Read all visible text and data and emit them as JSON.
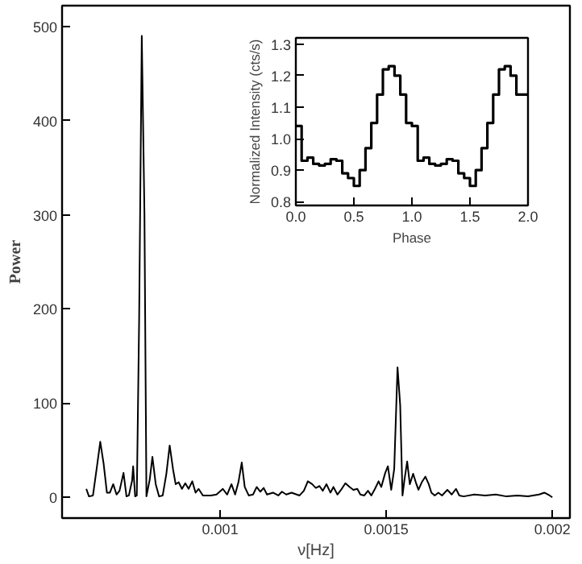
{
  "chart_data": [
    {
      "type": "line",
      "xlabel": "ν[Hz]",
      "ylabel": "Power",
      "x": [
        0.000597,
        0.000605,
        0.000617,
        0.000628,
        0.000639,
        0.000649,
        0.000659,
        0.000668,
        0.000678,
        0.000688,
        0.000697,
        0.000709,
        0.000718,
        0.000725,
        0.000735,
        0.000738,
        0.000744,
        0.000749,
        0.000756,
        0.000764,
        0.000772,
        0.000778,
        0.000788,
        0.000796,
        0.000806,
        0.000816,
        0.000827,
        0.000838,
        0.000848,
        0.000858,
        0.000866,
        0.000875,
        0.000885,
        0.000895,
        0.000905,
        0.000916,
        0.000926,
        0.000935,
        0.000948,
        0.000972,
        0.000989,
        0.001008,
        0.001021,
        0.001034,
        0.001045,
        0.001055,
        0.001065,
        0.001074,
        0.001086,
        0.001099,
        0.00111,
        0.001121,
        0.001131,
        0.001141,
        0.001159,
        0.001175,
        0.001186,
        0.001199,
        0.001215,
        0.001239,
        0.001252,
        0.001264,
        0.001277,
        0.001288,
        0.001299,
        0.001309,
        0.00132,
        0.001332,
        0.001341,
        0.001353,
        0.001364,
        0.001377,
        0.00139,
        0.001401,
        0.001413,
        0.001422,
        0.001434,
        0.001445,
        0.001455,
        0.001466,
        0.001477,
        0.001485,
        0.001497,
        0.001505,
        0.001515,
        0.001524,
        0.001534,
        0.001542,
        0.001549,
        0.001555,
        0.001563,
        0.001571,
        0.001581,
        0.001589,
        0.001597,
        0.001607,
        0.001618,
        0.001628,
        0.001636,
        0.001646,
        0.001657,
        0.001668,
        0.001684,
        0.001697,
        0.00171,
        0.00172,
        0.001733,
        0.001765,
        0.001798,
        0.00183,
        0.001862,
        0.001895,
        0.001927,
        0.00196,
        0.001976,
        0.001992,
        0.002
      ],
      "series": [
        {
          "color": "#000000",
          "values": [
            9,
            1,
            2,
            30,
            59,
            36,
            5,
            5,
            14,
            3,
            7,
            26,
            1,
            2,
            18,
            33,
            1,
            2,
            188,
            490,
            301,
            1,
            19,
            43,
            14,
            1,
            2,
            25,
            55,
            30,
            14,
            16,
            9,
            15,
            9,
            17,
            5,
            9,
            2,
            2,
            3,
            9,
            3,
            14,
            3,
            16,
            37,
            11,
            2,
            3,
            11,
            6,
            10,
            3,
            5,
            2,
            6,
            3,
            5,
            2,
            7,
            17,
            14,
            10,
            12,
            7,
            14,
            5,
            11,
            3,
            8,
            15,
            11,
            8,
            9,
            3,
            2,
            7,
            2,
            9,
            17,
            11,
            26,
            33,
            8,
            30,
            138,
            98,
            2,
            19,
            38,
            14,
            25,
            16,
            8,
            16,
            22,
            14,
            5,
            2,
            5,
            2,
            8,
            3,
            9,
            2,
            1,
            3,
            2,
            3,
            1,
            2,
            1,
            3,
            5,
            2,
            0
          ]
        }
      ],
      "xlim": [
        0.000524,
        0.002053
      ],
      "ylim": [
        -22,
        522
      ],
      "xticks": [
        0.001,
        0.0015,
        0.002
      ],
      "yticks": [
        0,
        100,
        200,
        300,
        400,
        500
      ],
      "grid": false,
      "marker": "none",
      "line_style": "solid"
    },
    {
      "type": "step",
      "xlabel": "Phase",
      "ylabel": "Normalized Intensity (cts/s)",
      "x": [
        0,
        0.05,
        0.1,
        0.15,
        0.2,
        0.25,
        0.3,
        0.35,
        0.4,
        0.45,
        0.5,
        0.55,
        0.6,
        0.65,
        0.7,
        0.75,
        0.8,
        0.85,
        0.9,
        0.95,
        1.0,
        1.05,
        1.1,
        1.15,
        1.2,
        1.25,
        1.3,
        1.35,
        1.4,
        1.45,
        1.5,
        1.55,
        1.6,
        1.65,
        1.7,
        1.75,
        1.8,
        1.85,
        1.9,
        1.95,
        2.0
      ],
      "series": [
        {
          "color": "#000000",
          "values": [
            1.04,
            0.93,
            0.94,
            0.92,
            0.915,
            0.92,
            0.935,
            0.93,
            0.89,
            0.875,
            0.85,
            0.9,
            0.97,
            1.05,
            1.14,
            1.22,
            1.23,
            1.2,
            1.14,
            1.05,
            1.04,
            0.93,
            0.94,
            0.92,
            0.915,
            0.92,
            0.935,
            0.93,
            0.89,
            0.875,
            0.85,
            0.9,
            0.97,
            1.05,
            1.14,
            1.22,
            1.23,
            1.2,
            1.14,
            1.14,
            1.14
          ]
        }
      ],
      "xlim": [
        0,
        2
      ],
      "ylim": [
        0.788,
        1.32
      ],
      "xticks": [
        {
          "value": 0,
          "label": "0.0"
        },
        0.5,
        {
          "value": 1,
          "label": "1.0"
        },
        1.5,
        {
          "value": 2,
          "label": "2.0"
        }
      ],
      "yticks": [
        0.8,
        0.9,
        {
          "value": 1,
          "label": "1.0"
        },
        1.1,
        1.2,
        1.3
      ],
      "grid": false,
      "marker": "none",
      "line_style": "solid"
    }
  ]
}
